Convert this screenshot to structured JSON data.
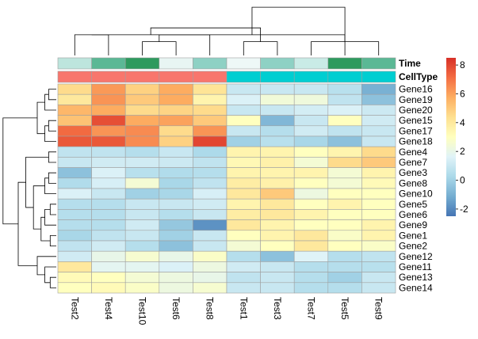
{
  "chart_data": {
    "type": "heatmap",
    "title": "",
    "columns": [
      "Test2",
      "Test4",
      "Test10",
      "Test6",
      "Test8",
      "Test1",
      "Test3",
      "Test7",
      "Test5",
      "Test9"
    ],
    "rows": [
      "Gene16",
      "Gene19",
      "Gene20",
      "Gene15",
      "Gene17",
      "Gene18",
      "Gene4",
      "Gene7",
      "Gene3",
      "Gene8",
      "Gene10",
      "Gene5",
      "Gene6",
      "Gene9",
      "Gene1",
      "Gene2",
      "Gene12",
      "Gene11",
      "Gene13",
      "Gene14"
    ],
    "values": [
      [
        4.5,
        6.2,
        4.8,
        5.8,
        4.2,
        1.0,
        1.0,
        1.0,
        0.6,
        -1.0
      ],
      [
        4.0,
        6.3,
        5.0,
        5.8,
        3.5,
        1.5,
        2.4,
        2.3,
        0.8,
        -0.5
      ],
      [
        5.5,
        5.8,
        4.5,
        4.7,
        4.5,
        1.0,
        1.0,
        1.3,
        1.5,
        1.1
      ],
      [
        5.2,
        7.8,
        5.8,
        6.0,
        5.0,
        3.0,
        -0.8,
        1.0,
        3.0,
        1.2
      ],
      [
        7.2,
        6.3,
        6.5,
        4.5,
        6.3,
        1.0,
        0.5,
        1.2,
        0.8,
        1.0
      ],
      [
        7.6,
        7.6,
        6.5,
        4.8,
        8.0,
        0.0,
        0.6,
        0.2,
        -0.5,
        1.0
      ],
      [
        0.8,
        0.8,
        0.5,
        1.0,
        0.3,
        3.5,
        3.5,
        3.0,
        3.5,
        4.5
      ],
      [
        1.0,
        1.2,
        1.2,
        1.1,
        0.8,
        3.3,
        3.6,
        2.5,
        4.5,
        5.0
      ],
      [
        -0.5,
        1.5,
        0.6,
        0.4,
        0.5,
        3.5,
        3.5,
        3.5,
        2.5,
        3.5
      ],
      [
        0.4,
        1.4,
        2.5,
        0.2,
        0.8,
        3.8,
        3.6,
        3.0,
        2.5,
        3.2
      ],
      [
        1.5,
        1.0,
        0.0,
        0.2,
        1.4,
        4.0,
        5.0,
        2.2,
        3.0,
        3.0
      ],
      [
        0.5,
        0.5,
        1.0,
        1.0,
        1.2,
        3.5,
        4.0,
        3.0,
        3.5,
        3.0
      ],
      [
        0.5,
        0.5,
        1.0,
        0.5,
        1.0,
        3.8,
        4.0,
        3.5,
        3.0,
        3.0
      ],
      [
        0.5,
        0.5,
        1.2,
        -0.3,
        -1.8,
        4.0,
        3.5,
        3.0,
        3.0,
        3.5
      ],
      [
        0.2,
        0.8,
        1.0,
        0.0,
        1.0,
        3.0,
        3.5,
        4.0,
        2.8,
        3.5
      ],
      [
        0.8,
        1.2,
        0.5,
        -0.5,
        1.0,
        2.5,
        3.0,
        4.0,
        3.0,
        2.8
      ],
      [
        1.2,
        2.0,
        2.6,
        2.0,
        2.8,
        0.5,
        -0.5,
        1.6,
        0.5,
        0.8
      ],
      [
        4.0,
        1.8,
        1.8,
        1.5,
        2.2,
        1.2,
        1.0,
        0.5,
        0.5,
        0.6
      ],
      [
        3.2,
        3.0,
        2.5,
        2.2,
        2.0,
        0.8,
        1.0,
        0.5,
        0.0,
        1.0
      ],
      [
        3.0,
        3.2,
        2.8,
        2.2,
        2.6,
        1.0,
        1.0,
        0.5,
        0.5,
        1.0
      ]
    ],
    "annotations": [
      {
        "name": "Time",
        "colors": [
          "#bde5dd",
          "#5bb895",
          "#2e9a5e",
          "#e8f5f3",
          "#8ed1c4",
          "#eef8f7",
          "#8ed1c4",
          "#c9ebe6",
          "#2e9a5e",
          "#5bb895"
        ]
      },
      {
        "name": "CellType",
        "colors": [
          "#f8766d",
          "#f8766d",
          "#f8766d",
          "#f8766d",
          "#f8766d",
          "#00ced1",
          "#00ced1",
          "#00ced1",
          "#00ced1",
          "#00ced1"
        ]
      }
    ],
    "legend": {
      "ticks": [
        8,
        6,
        4,
        2,
        0,
        -2
      ],
      "range": [
        -2.5,
        8.5
      ],
      "colors": [
        "#4575b4",
        "#74add1",
        "#abd9e9",
        "#e0f3f8",
        "#ffffbf",
        "#fee090",
        "#fdae61",
        "#f46d43",
        "#d73027"
      ]
    },
    "col_dendrogram": [
      [
        0,
        1,
        3
      ],
      [
        2,
        3,
        2
      ],
      [
        10,
        4,
        3
      ],
      [
        5,
        6,
        2
      ],
      [
        7,
        9,
        2
      ],
      [
        8,
        11,
        3
      ],
      [
        12,
        13,
        4
      ],
      [
        14,
        15,
        7
      ]
    ],
    "row_dendrogram": [
      [
        0,
        1,
        1
      ],
      [
        20,
        2,
        1.5
      ],
      [
        3,
        4,
        1
      ],
      [
        5,
        22,
        1.5
      ],
      [
        21,
        23,
        2.5
      ],
      [
        6,
        7,
        1
      ],
      [
        8,
        9,
        1
      ],
      [
        26,
        10,
        1.5
      ],
      [
        11,
        12,
        0.8
      ],
      [
        28,
        13,
        1.5
      ],
      [
        14,
        15,
        0.8
      ],
      [
        29,
        30,
        2
      ],
      [
        27,
        31,
        3
      ],
      [
        25,
        32,
        4
      ],
      [
        18,
        19,
        0.8
      ],
      [
        17,
        34,
        1.5
      ],
      [
        16,
        35,
        2.5
      ],
      [
        33,
        36,
        5
      ],
      [
        24,
        37,
        7
      ]
    ]
  }
}
